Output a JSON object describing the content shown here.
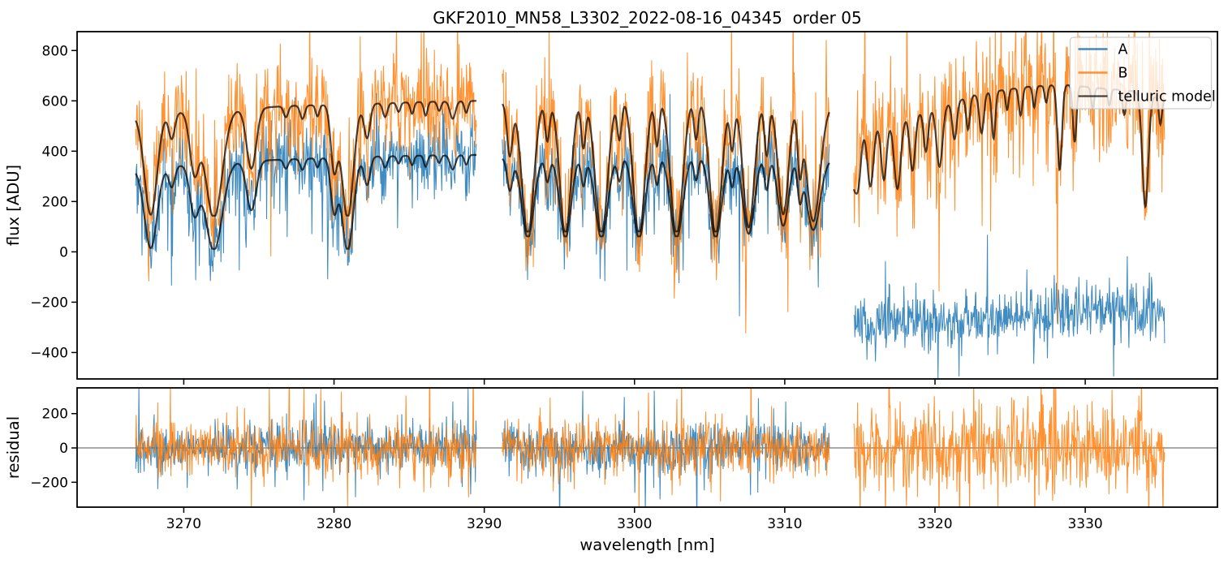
{
  "figure": {
    "title": "GKF2010_MN58_L3302_2022-08-16_04345  order 05"
  },
  "chart_data": {
    "type": "line",
    "title": "GKF2010_MN58_L3302_2022-08-16_04345  order 05",
    "xlabel": "wavelength [nm]",
    "xlim": [
      3262.9,
      3338.8
    ],
    "xticks": [
      3270,
      3280,
      3290,
      3300,
      3310,
      3320,
      3330
    ],
    "grid": false,
    "legend": {
      "position": "upper right",
      "items": [
        "A",
        "B",
        "telluric model"
      ]
    },
    "panels": [
      {
        "id": "flux",
        "ylabel": "flux [ADU]",
        "ylim": [
          -505,
          875
        ],
        "yticks": [
          800,
          600,
          400,
          200,
          0,
          -200,
          -400
        ],
        "height_ratio": 3,
        "zero_line": false
      },
      {
        "id": "residual",
        "ylabel": "residual",
        "ylim": [
          -345,
          350
        ],
        "yticks": [
          200,
          0,
          -200
        ],
        "height_ratio": 1,
        "zero_line": true
      }
    ],
    "series": [
      {
        "label": "A",
        "color": "#1f77b4",
        "alpha": 0.85,
        "role": "data"
      },
      {
        "label": "B",
        "color": "#ff7f0e",
        "alpha": 0.85,
        "role": "data"
      },
      {
        "label": "telluric model",
        "color": "#000000",
        "alpha": 0.72,
        "role": "model"
      }
    ],
    "zero_line_color": "#555555",
    "segments": [
      {
        "x_range": [
          3266.8,
          3289.5
        ],
        "continuum_B": [
          [
            3266.8,
            545
          ],
          [
            3268.5,
            552
          ],
          [
            3271,
            558
          ],
          [
            3274,
            568
          ],
          [
            3277,
            580
          ],
          [
            3280,
            585
          ],
          [
            3283,
            590
          ],
          [
            3286,
            596
          ],
          [
            3289.5,
            600
          ]
        ],
        "offset_B": 135,
        "continuum_A": [
          [
            3266.8,
            330
          ],
          [
            3270,
            345
          ],
          [
            3274,
            360
          ],
          [
            3278,
            370
          ],
          [
            3282,
            378
          ],
          [
            3286,
            383
          ],
          [
            3289.5,
            385
          ]
        ],
        "offset_A": 5,
        "telluric_lines": [
          [
            3267.8,
            0.97,
            0.42
          ],
          [
            3269.2,
            0.25,
            0.2
          ],
          [
            3270.7,
            0.55,
            0.3
          ],
          [
            3272.0,
            1.0,
            0.55
          ],
          [
            3274.5,
            0.55,
            0.32
          ],
          [
            3276.8,
            0.1,
            0.15
          ],
          [
            3277.9,
            0.12,
            0.15
          ],
          [
            3278.9,
            0.1,
            0.12
          ],
          [
            3280.0,
            0.55,
            0.22
          ],
          [
            3280.9,
            1.0,
            0.38
          ],
          [
            3282.2,
            0.3,
            0.2
          ],
          [
            3283.4,
            0.12,
            0.15
          ],
          [
            3284.3,
            0.08,
            0.12
          ],
          [
            3285.2,
            0.1,
            0.12
          ],
          [
            3286.1,
            0.12,
            0.12
          ],
          [
            3287.0,
            0.08,
            0.12
          ],
          [
            3287.9,
            0.15,
            0.18
          ],
          [
            3288.8,
            0.1,
            0.12
          ]
        ],
        "noise_sigma": {
          "A_flux": 75,
          "B_flux": 100,
          "A_residual": 70,
          "B_residual": 80
        },
        "has_A_model": true,
        "has_A_data": true,
        "has_A_residual": true
      },
      {
        "x_range": [
          3291.2,
          3313.0
        ],
        "continuum_B": [
          [
            3291.2,
            592
          ],
          [
            3295,
            608
          ],
          [
            3299,
            620
          ],
          [
            3302,
            625
          ],
          [
            3306,
            612
          ],
          [
            3310,
            596
          ],
          [
            3313,
            582
          ]
        ],
        "offset_B": 70,
        "continuum_A": [
          [
            3291.2,
            372
          ],
          [
            3299,
            386
          ],
          [
            3303,
            390
          ],
          [
            3308,
            381
          ],
          [
            3313,
            370
          ]
        ],
        "offset_A": 55,
        "telluric_lines": [
          [
            3291.7,
            0.4,
            0.18
          ],
          [
            3292.9,
            1.0,
            0.4
          ],
          [
            3294.2,
            0.3,
            0.15
          ],
          [
            3295.4,
            1.0,
            0.38
          ],
          [
            3296.6,
            0.35,
            0.15
          ],
          [
            3297.8,
            1.0,
            0.42
          ],
          [
            3299.0,
            0.3,
            0.15
          ],
          [
            3300.3,
            1.0,
            0.4
          ],
          [
            3301.5,
            0.35,
            0.15
          ],
          [
            3302.8,
            1.0,
            0.42
          ],
          [
            3304.1,
            0.3,
            0.15
          ],
          [
            3305.4,
            1.0,
            0.4
          ],
          [
            3306.5,
            0.35,
            0.15
          ],
          [
            3307.6,
            0.95,
            0.38
          ],
          [
            3308.8,
            0.4,
            0.15
          ],
          [
            3309.9,
            0.85,
            0.35
          ],
          [
            3311.0,
            0.45,
            0.15
          ],
          [
            3311.9,
            0.9,
            0.45
          ]
        ],
        "noise_sigma": {
          "A_flux": 75,
          "B_flux": 100,
          "A_residual": 70,
          "B_residual": 80
        },
        "has_A_model": true,
        "has_A_data": true,
        "has_A_residual": true
      },
      {
        "x_range": [
          3314.6,
          3335.3
        ],
        "continuum_B": [
          [
            3314.6,
            480
          ],
          [
            3317,
            520
          ],
          [
            3320,
            570
          ],
          [
            3323,
            630
          ],
          [
            3326,
            655
          ],
          [
            3328.5,
            665
          ],
          [
            3331,
            650
          ],
          [
            3333,
            640
          ],
          [
            3334.5,
            620
          ],
          [
            3335.3,
            600
          ]
        ],
        "offset_B": 100,
        "A_level": [
          [
            3314.6,
            -290
          ],
          [
            3318,
            -285
          ],
          [
            3322,
            -270
          ],
          [
            3326,
            -260
          ],
          [
            3329,
            -248
          ],
          [
            3331.5,
            -205
          ],
          [
            3333,
            -225
          ],
          [
            3335.3,
            -255
          ]
        ],
        "telluric_lines": [
          [
            3314.55,
            0.5,
            0.2
          ],
          [
            3314.9,
            0.5,
            0.18
          ],
          [
            3315.7,
            0.6,
            0.2
          ],
          [
            3316.6,
            0.55,
            0.18
          ],
          [
            3317.5,
            0.65,
            0.22
          ],
          [
            3318.5,
            0.5,
            0.18
          ],
          [
            3319.4,
            0.35,
            0.15
          ],
          [
            3320.3,
            0.5,
            0.2
          ],
          [
            3321.3,
            0.3,
            0.15
          ],
          [
            3322.2,
            0.25,
            0.12
          ],
          [
            3323.1,
            0.3,
            0.15
          ],
          [
            3323.9,
            0.35,
            0.12
          ],
          [
            3324.8,
            0.15,
            0.1
          ],
          [
            3325.7,
            0.2,
            0.12
          ],
          [
            3326.6,
            0.15,
            0.1
          ],
          [
            3327.4,
            0.12,
            0.1
          ],
          [
            3328.3,
            0.6,
            0.15
          ],
          [
            3329.3,
            0.4,
            0.12
          ],
          [
            3330.5,
            0.15,
            0.1
          ],
          [
            3331.6,
            0.12,
            0.1
          ],
          [
            3332.6,
            0.18,
            0.12
          ],
          [
            3334.0,
            0.85,
            0.2
          ],
          [
            3335.0,
            0.2,
            0.1
          ]
        ],
        "noise_sigma": {
          "A_flux": 52,
          "B_flux": 125,
          "B_residual": 120
        },
        "has_A_model": false,
        "has_A_data": true,
        "has_A_residual": false
      }
    ],
    "noise": {
      "heavy_tail_prob": 0.08,
      "heavy_tail_scale": 2.6,
      "transmission_floor": 0.02,
      "sample_step_nm": 0.035
    }
  }
}
